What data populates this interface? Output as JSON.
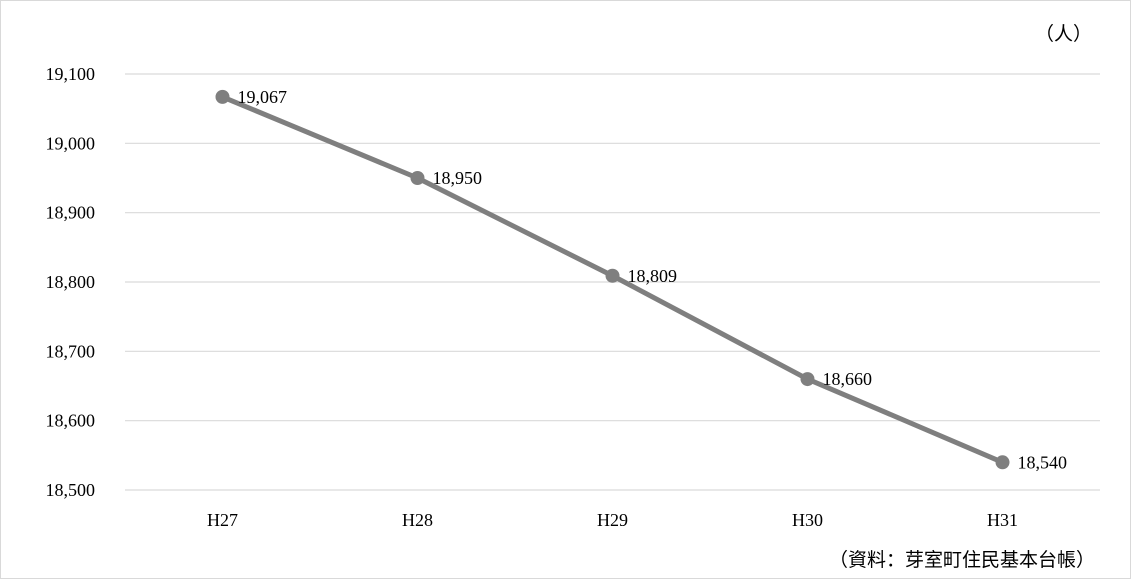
{
  "chart_data": {
    "type": "line",
    "title": "",
    "xlabel": "",
    "ylabel": "",
    "unit": "（人）",
    "source": "（資料：芽室町住民基本台帳）",
    "categories": [
      "H27",
      "H28",
      "H29",
      "H30",
      "H31"
    ],
    "series": [
      {
        "values": [
          19067,
          18950,
          18809,
          18660,
          18540
        ],
        "labels": [
          "19,067",
          "18,950",
          "18,809",
          "18,660",
          "18,540"
        ],
        "color": "#7f7f7f"
      }
    ],
    "ylim": [
      18500,
      19100
    ],
    "yticks": [
      18500,
      18600,
      18700,
      18800,
      18900,
      19000,
      19100
    ],
    "ytick_labels": [
      "18,500",
      "18,600",
      "18,700",
      "18,800",
      "18,900",
      "19,000",
      "19,100"
    ],
    "grid": true,
    "legend": "none",
    "colors": {
      "line": "#7f7f7f",
      "grid": "#d9d9d9",
      "frame": "#d9d9d9"
    }
  }
}
